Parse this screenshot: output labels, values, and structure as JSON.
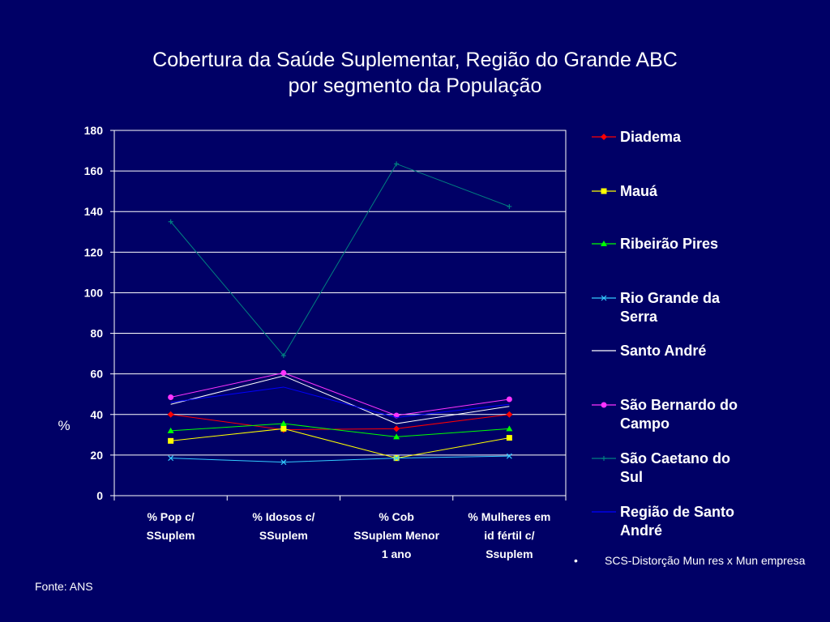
{
  "title": "Cobertura da Saúde Suplementar, Região do Grande ABC",
  "subtitle": "por segmento da População",
  "chart_data": {
    "type": "line",
    "ylabel": "%",
    "ylim": [
      0,
      180
    ],
    "yticks": [
      0,
      20,
      40,
      60,
      80,
      100,
      120,
      140,
      160,
      180
    ],
    "grid": true,
    "legend_position": "right",
    "categories": [
      [
        "% Pop c/",
        "SSuplem"
      ],
      [
        "% Idosos c/",
        "SSuplem"
      ],
      [
        "% Cob",
        "SSuplem Menor",
        "1 ano"
      ],
      [
        "% Mulheres em",
        "id fértil c/",
        "Ssuplem"
      ]
    ],
    "series": [
      {
        "name": [
          "Diadema"
        ],
        "values": [
          40,
          32.5,
          33,
          40
        ],
        "color": "#ff0000",
        "marker": "diamond"
      },
      {
        "name": [
          "Mauá"
        ],
        "values": [
          27,
          33,
          18.5,
          28.5
        ],
        "color": "#ffff00",
        "marker": "square"
      },
      {
        "name": [
          "Ribeirão Pires"
        ],
        "values": [
          32,
          35.5,
          29,
          33
        ],
        "color": "#00ff00",
        "marker": "triangle"
      },
      {
        "name": [
          "Rio Grande da",
          "Serra"
        ],
        "values": [
          18.5,
          16.5,
          18.5,
          19.5
        ],
        "color": "#33ccff",
        "marker": "x"
      },
      {
        "name": [
          "Santo André"
        ],
        "values": [
          45,
          59,
          35.5,
          44
        ],
        "color": "#ffffff",
        "marker": "none"
      },
      {
        "name": [
          "São Bernardo do",
          "Campo"
        ],
        "values": [
          48.5,
          60.5,
          39.5,
          47.5
        ],
        "color": "#ff33ff",
        "marker": "circle"
      },
      {
        "name": [
          "São Caetano do",
          "Sul"
        ],
        "values": [
          135,
          69,
          163.5,
          142.5
        ],
        "color": "#008080",
        "marker": "plus"
      },
      {
        "name": [
          "Região de Santo",
          "André"
        ],
        "values": [
          46,
          53.5,
          38.5,
          45
        ],
        "color": "#0000ff",
        "marker": "none"
      }
    ]
  },
  "note": {
    "bullet": "•",
    "text": "SCS-Distorção Mun res x Mun empresa"
  },
  "source": "Fonte: ANS"
}
